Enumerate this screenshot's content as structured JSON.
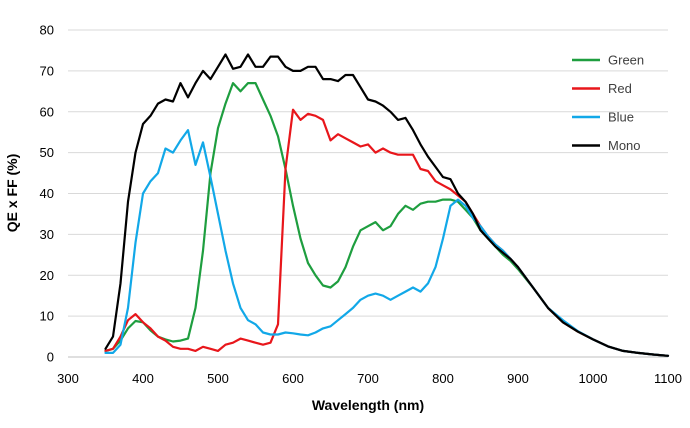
{
  "chart_data": {
    "type": "line",
    "title": "",
    "xlabel": "Wavelength (nm)",
    "ylabel": "QE x FF (%)",
    "xlim": [
      300,
      1100
    ],
    "ylim": [
      0,
      80
    ],
    "xticks": [
      300,
      400,
      500,
      600,
      700,
      800,
      900,
      1000,
      1100
    ],
    "yticks": [
      0,
      10,
      20,
      30,
      40,
      50,
      60,
      70,
      80
    ],
    "grid": "horizontal",
    "legend": "top-right",
    "series": [
      {
        "name": "Green",
        "color": "#1e9e3f",
        "x": [
          350,
          360,
          370,
          380,
          390,
          400,
          410,
          420,
          430,
          440,
          450,
          460,
          470,
          480,
          490,
          500,
          510,
          520,
          530,
          540,
          550,
          560,
          570,
          580,
          590,
          600,
          610,
          620,
          630,
          640,
          650,
          660,
          670,
          680,
          690,
          700,
          710,
          720,
          730,
          740,
          750,
          760,
          770,
          780,
          790,
          800,
          810,
          820,
          830,
          840,
          850,
          860,
          870,
          880,
          890,
          900,
          920,
          940,
          960,
          980,
          1000,
          1020,
          1040,
          1060,
          1080,
          1100
        ],
        "y": [
          1.5,
          2,
          4,
          7,
          8.8,
          8.5,
          6.5,
          5,
          4.3,
          3.8,
          4,
          4.5,
          12,
          26,
          45,
          56,
          62,
          67,
          65,
          67,
          67,
          63,
          59,
          54,
          46,
          37,
          29,
          23,
          20,
          17.5,
          17,
          18.5,
          22,
          27,
          31,
          32,
          33,
          31,
          32,
          35,
          37,
          36,
          37.5,
          38,
          38,
          38.5,
          38.5,
          38,
          36,
          34,
          31,
          29,
          27,
          25,
          23.5,
          21.5,
          17,
          12,
          8.5,
          6.2,
          4.3,
          2.6,
          1.5,
          1,
          0.6,
          0.3
        ]
      },
      {
        "name": "Red",
        "color": "#e8161b",
        "x": [
          350,
          360,
          370,
          380,
          390,
          400,
          410,
          420,
          430,
          440,
          450,
          460,
          470,
          480,
          490,
          500,
          510,
          520,
          530,
          540,
          550,
          560,
          570,
          580,
          590,
          600,
          610,
          620,
          630,
          640,
          650,
          660,
          670,
          680,
          690,
          700,
          710,
          720,
          730,
          740,
          750,
          760,
          770,
          780,
          790,
          800,
          810,
          820,
          830,
          840,
          850,
          860,
          870,
          880,
          890,
          900,
          920,
          940,
          960,
          980,
          1000,
          1020,
          1040,
          1060,
          1080,
          1100
        ],
        "y": [
          1.5,
          2,
          5,
          9,
          10.5,
          8.5,
          7,
          5,
          4,
          2.5,
          2,
          2,
          1.5,
          2.5,
          2,
          1.5,
          3,
          3.5,
          4.5,
          4,
          3.5,
          3,
          3.5,
          8,
          46,
          60.5,
          58,
          59.5,
          59,
          58,
          53,
          54.5,
          53.5,
          52.5,
          51.5,
          52,
          50,
          51,
          50,
          49.5,
          49.5,
          49.5,
          46,
          45.5,
          43,
          42,
          41,
          39.5,
          38,
          35,
          32,
          29.5,
          27.5,
          26,
          24,
          22,
          17,
          12,
          8.5,
          6.2,
          4.3,
          2.6,
          1.5,
          1,
          0.6,
          0.3
        ]
      },
      {
        "name": "Blue",
        "color": "#12a8e8",
        "x": [
          350,
          360,
          370,
          380,
          390,
          400,
          410,
          420,
          430,
          440,
          450,
          460,
          470,
          480,
          490,
          500,
          510,
          520,
          530,
          540,
          550,
          560,
          570,
          580,
          590,
          600,
          610,
          620,
          630,
          640,
          650,
          660,
          670,
          680,
          690,
          700,
          710,
          720,
          730,
          740,
          750,
          760,
          770,
          780,
          790,
          800,
          810,
          820,
          830,
          840,
          850,
          860,
          870,
          880,
          890,
          900,
          920,
          940,
          960,
          980,
          1000,
          1020,
          1040,
          1060,
          1080,
          1100
        ],
        "y": [
          1,
          1,
          3,
          12,
          28,
          40,
          43,
          45,
          51,
          50,
          53,
          55.5,
          47,
          52.5,
          44,
          35,
          26,
          18,
          12,
          9,
          8,
          6,
          5.5,
          5.5,
          6,
          5.8,
          5.5,
          5.3,
          6,
          7,
          7.5,
          9,
          10.5,
          12,
          14,
          15,
          15.5,
          15,
          14,
          15,
          16,
          17,
          16,
          18,
          22,
          29,
          37,
          38.5,
          37,
          34,
          32,
          29.5,
          27.5,
          26,
          24,
          22,
          17,
          12,
          9,
          6.3,
          4.3,
          2.6,
          1.5,
          1,
          0.6,
          0.3
        ]
      },
      {
        "name": "Mono",
        "color": "#000000",
        "x": [
          350,
          360,
          370,
          380,
          390,
          400,
          410,
          420,
          430,
          440,
          450,
          460,
          470,
          480,
          490,
          500,
          510,
          520,
          530,
          540,
          550,
          560,
          570,
          580,
          590,
          600,
          610,
          620,
          630,
          640,
          650,
          660,
          670,
          680,
          690,
          700,
          710,
          720,
          730,
          740,
          750,
          760,
          770,
          780,
          790,
          800,
          810,
          820,
          830,
          840,
          850,
          860,
          870,
          880,
          890,
          900,
          920,
          940,
          960,
          980,
          1000,
          1020,
          1040,
          1060,
          1080,
          1100
        ],
        "y": [
          2,
          5,
          18,
          38,
          50,
          57,
          59,
          62,
          63,
          62.5,
          67,
          63.5,
          67,
          70,
          68,
          71,
          74,
          70.5,
          71,
          74,
          71,
          71,
          73.5,
          73.5,
          71,
          70,
          70,
          71,
          71,
          68,
          68,
          67.5,
          69,
          69,
          66,
          63,
          62.5,
          61.5,
          60,
          58,
          58.5,
          55.5,
          52,
          49,
          46.5,
          44,
          43.5,
          40,
          38,
          35,
          31,
          29,
          27,
          25.5,
          24,
          22,
          17,
          12,
          8.5,
          6.2,
          4.3,
          2.6,
          1.5,
          1,
          0.6,
          0.3
        ]
      }
    ]
  }
}
